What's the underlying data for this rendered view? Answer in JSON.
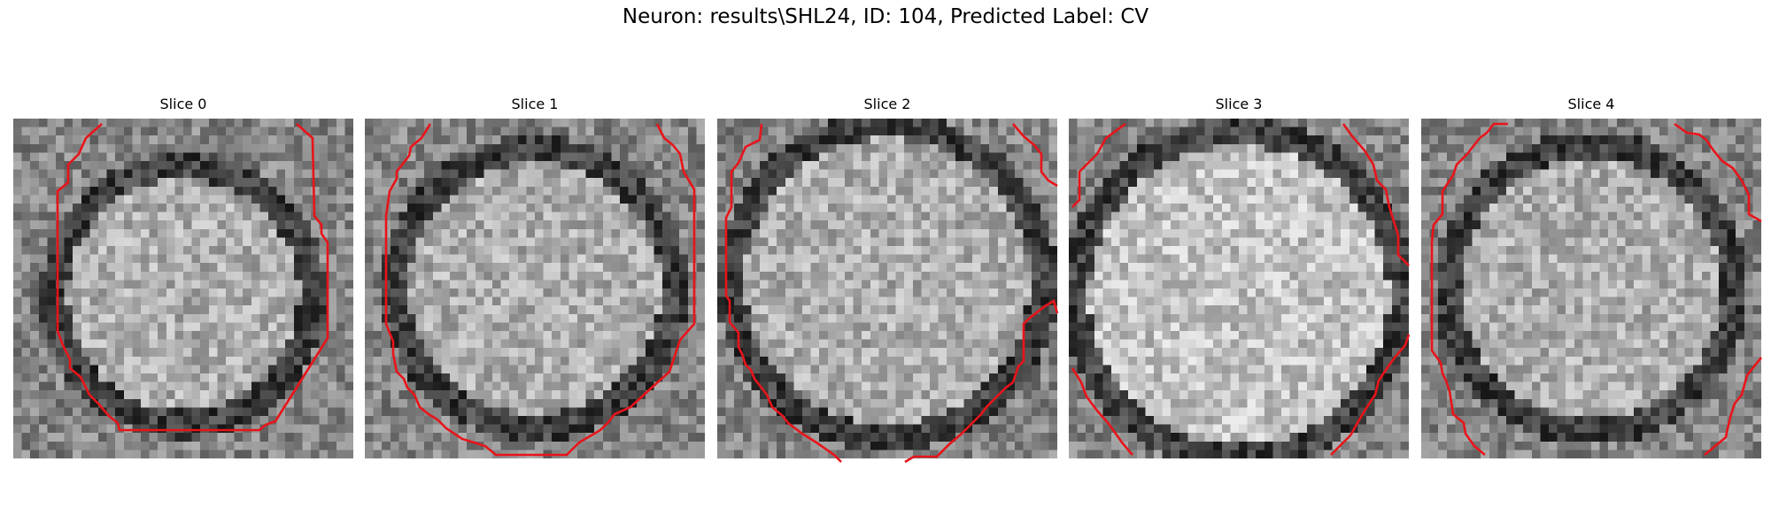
{
  "figure": {
    "title": "Neuron: results\\SHL24, ID: 104, Predicted Label: CV"
  },
  "colors": {
    "contour": "#e8141a",
    "background": "#ffffff"
  },
  "panels": [
    {
      "title": "Slice 0"
    },
    {
      "title": "Slice 1"
    },
    {
      "title": "Slice 2"
    },
    {
      "title": "Slice 3"
    },
    {
      "title": "Slice 4"
    }
  ]
}
